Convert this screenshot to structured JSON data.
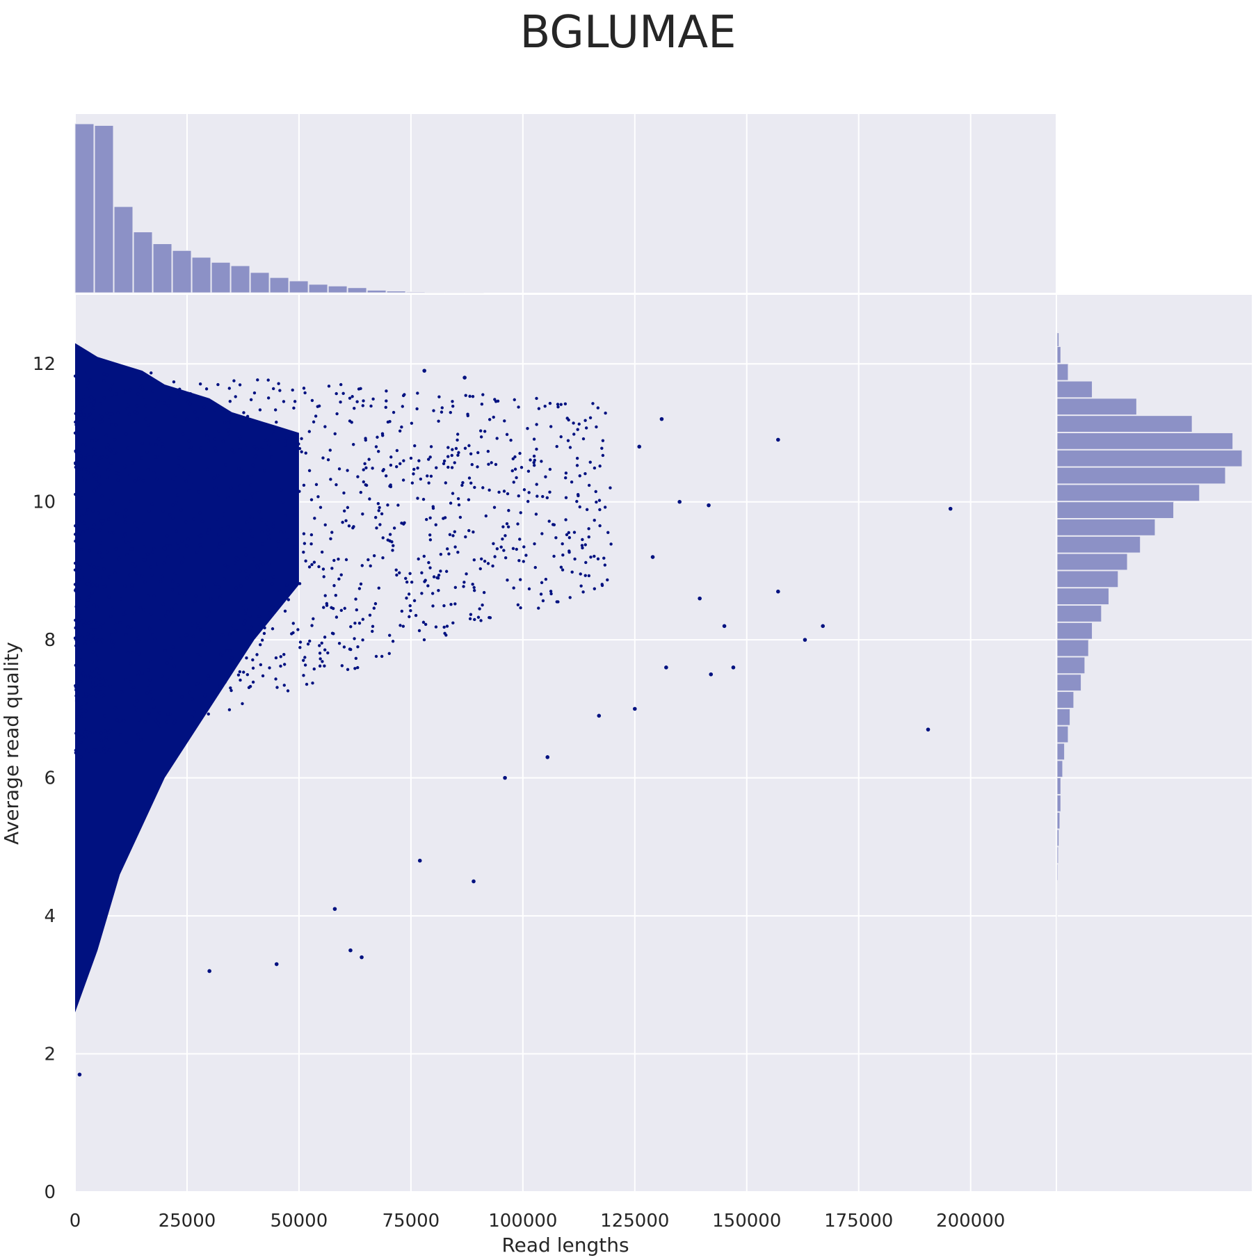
{
  "chart_data": {
    "type": "scatter",
    "title": "BGLUMAE",
    "xlabel": "Read lengths",
    "ylabel": "Average read quality",
    "xlim": [
      0,
      219000
    ],
    "ylim": [
      0,
      13
    ],
    "x_ticks": [
      0,
      25000,
      50000,
      75000,
      100000,
      125000,
      150000,
      175000,
      200000
    ],
    "y_ticks": [
      0,
      2,
      4,
      6,
      8,
      10,
      12
    ],
    "grid": true,
    "point_color": "#001180",
    "marginal_color": "#8c91c6",
    "background_color": "#eaeaf2",
    "dense_region_envelope": {
      "x": [
        0,
        5000,
        10000,
        15000,
        20000,
        25000,
        30000,
        35000,
        40000,
        45000,
        50000
      ],
      "y_upper": [
        12.3,
        12.1,
        12.0,
        11.9,
        11.7,
        11.6,
        11.5,
        11.3,
        11.2,
        11.1,
        11.0
      ],
      "y_lower": [
        2.6,
        3.5,
        4.6,
        5.3,
        6.0,
        6.5,
        7.0,
        7.5,
        8.0,
        8.4,
        8.8
      ]
    },
    "outlier_points": [
      {
        "x": 1000,
        "y": 1.7
      },
      {
        "x": 157000,
        "y": 10.9
      },
      {
        "x": 195500,
        "y": 9.9
      },
      {
        "x": 190500,
        "y": 6.7
      },
      {
        "x": 163000,
        "y": 8.0
      },
      {
        "x": 167000,
        "y": 8.2
      },
      {
        "x": 157000,
        "y": 8.7
      },
      {
        "x": 147000,
        "y": 7.6
      },
      {
        "x": 145000,
        "y": 8.2
      },
      {
        "x": 142000,
        "y": 7.5
      },
      {
        "x": 141500,
        "y": 9.95
      },
      {
        "x": 139500,
        "y": 8.6
      },
      {
        "x": 135000,
        "y": 10.0
      },
      {
        "x": 132000,
        "y": 7.6
      },
      {
        "x": 125000,
        "y": 7.0
      },
      {
        "x": 117000,
        "y": 6.9
      },
      {
        "x": 105500,
        "y": 6.3
      },
      {
        "x": 96000,
        "y": 6.0
      },
      {
        "x": 89000,
        "y": 4.5
      },
      {
        "x": 77000,
        "y": 4.8
      },
      {
        "x": 64000,
        "y": 3.4
      },
      {
        "x": 61500,
        "y": 3.5
      },
      {
        "x": 58000,
        "y": 4.1
      },
      {
        "x": 45000,
        "y": 3.3
      },
      {
        "x": 30000,
        "y": 3.2
      },
      {
        "x": 78000,
        "y": 11.9
      },
      {
        "x": 87000,
        "y": 11.8
      },
      {
        "x": 131000,
        "y": 11.2
      },
      {
        "x": 126000,
        "y": 10.8
      },
      {
        "x": 129000,
        "y": 9.2
      }
    ],
    "top_histogram": {
      "bin_width": 4350,
      "counts": [
        100,
        99,
        51,
        36,
        29,
        25,
        21,
        18,
        16,
        12,
        9,
        7,
        5,
        4,
        3,
        1.5,
        1,
        0.5,
        0.4,
        0.3,
        0.2
      ]
    },
    "right_histogram": {
      "bins": [
        {
          "y": 12.2,
          "count": 1
        },
        {
          "y": 12.0,
          "count": 2
        },
        {
          "y": 11.75,
          "count": 6
        },
        {
          "y": 11.5,
          "count": 19
        },
        {
          "y": 11.25,
          "count": 43
        },
        {
          "y": 11.0,
          "count": 73
        },
        {
          "y": 10.75,
          "count": 95
        },
        {
          "y": 10.5,
          "count": 100
        },
        {
          "y": 10.25,
          "count": 91
        },
        {
          "y": 10.0,
          "count": 77
        },
        {
          "y": 9.75,
          "count": 63
        },
        {
          "y": 9.5,
          "count": 53
        },
        {
          "y": 9.25,
          "count": 45
        },
        {
          "y": 9.0,
          "count": 38
        },
        {
          "y": 8.75,
          "count": 33
        },
        {
          "y": 8.5,
          "count": 28
        },
        {
          "y": 8.25,
          "count": 24
        },
        {
          "y": 8.0,
          "count": 19
        },
        {
          "y": 7.75,
          "count": 17
        },
        {
          "y": 7.5,
          "count": 15
        },
        {
          "y": 7.25,
          "count": 13
        },
        {
          "y": 7.0,
          "count": 9
        },
        {
          "y": 6.75,
          "count": 7
        },
        {
          "y": 6.5,
          "count": 6
        },
        {
          "y": 6.25,
          "count": 4
        },
        {
          "y": 6.0,
          "count": 3
        },
        {
          "y": 5.75,
          "count": 2
        },
        {
          "y": 5.5,
          "count": 2
        },
        {
          "y": 5.25,
          "count": 1.5
        },
        {
          "y": 5.0,
          "count": 1
        },
        {
          "y": 4.75,
          "count": 0.7
        },
        {
          "y": 4.5,
          "count": 0.5
        },
        {
          "y": 4.25,
          "count": 0.3
        },
        {
          "y": 4.0,
          "count": 0.2
        },
        {
          "y": 3.75,
          "count": 0.15
        },
        {
          "y": 3.5,
          "count": 0.1
        }
      ]
    }
  }
}
